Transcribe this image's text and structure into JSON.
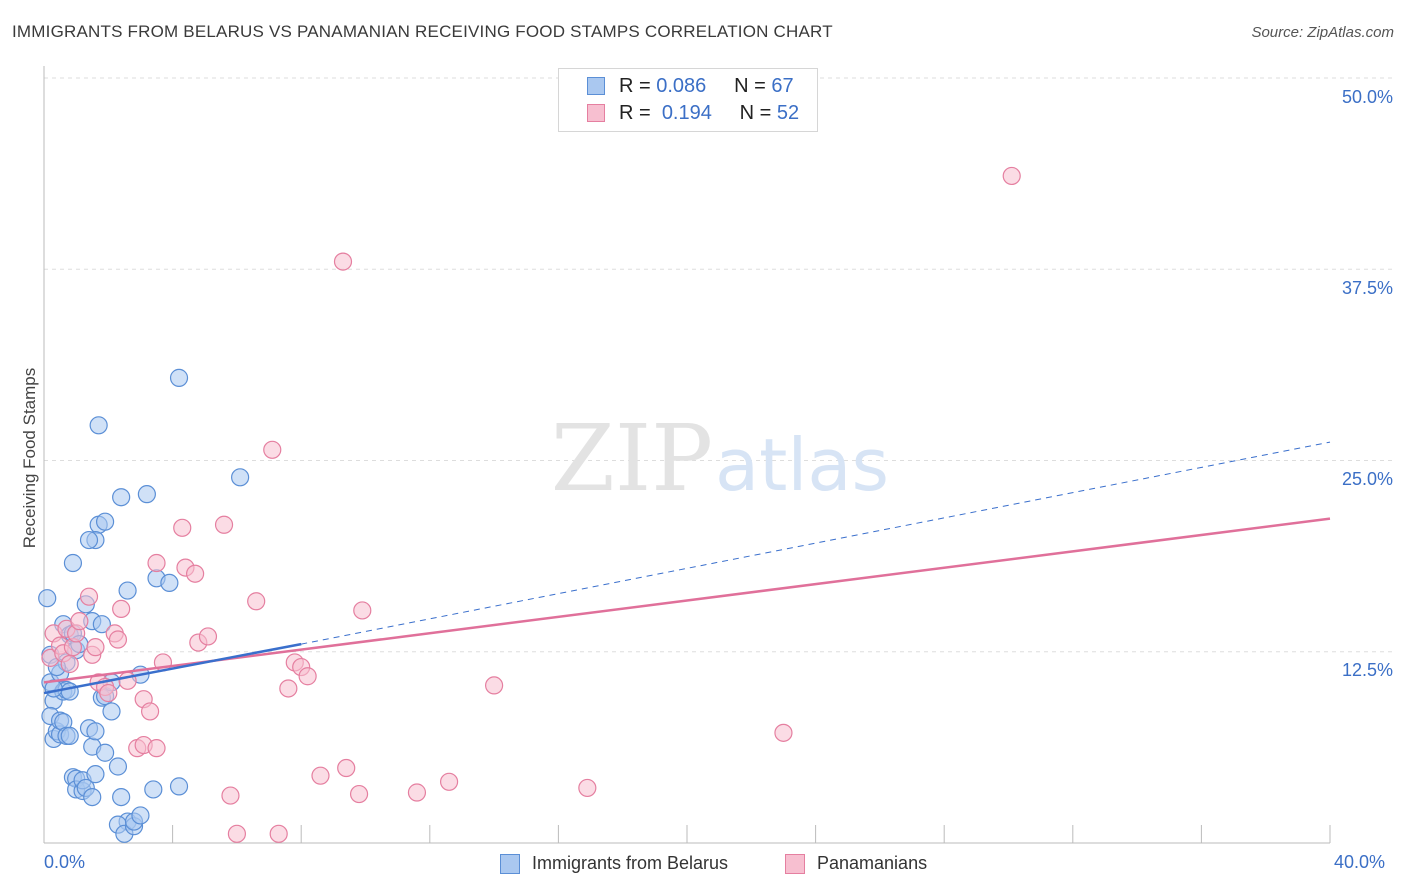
{
  "title": "IMMIGRANTS FROM BELARUS VS PANAMANIAN RECEIVING FOOD STAMPS CORRELATION CHART",
  "source": "Source: ZipAtlas.com",
  "watermark": {
    "zip": "ZIP",
    "atlas": "atlas"
  },
  "legend_top": {
    "rows": [
      {
        "r_label": "R =",
        "r_value": "0.086",
        "n_label": "N =",
        "n_value": "67"
      },
      {
        "r_label": "R =",
        "r_value": "0.194",
        "n_label": "N =",
        "n_value": "52"
      }
    ]
  },
  "legend_bottom": {
    "series1": "Immigrants from Belarus",
    "series2": "Panamanians"
  },
  "colors": {
    "blue_fill": "#aac8f0",
    "blue_stroke": "#5b8fd6",
    "blue_line": "#3a6fcc",
    "pink_fill": "#f7bfd0",
    "pink_stroke": "#e57fa0",
    "pink_line": "#e0709a",
    "grid": "#dddddd",
    "tick_label": "#3b6fc6"
  },
  "chart_data": {
    "type": "scatter",
    "title": "IMMIGRANTS FROM BELARUS VS PANAMANIAN RECEIVING FOOD STAMPS CORRELATION CHART",
    "xlabel": "",
    "ylabel": "Receiving Food Stamps",
    "xlim": [
      0,
      40
    ],
    "ylim": [
      0,
      50
    ],
    "x_tick_labels": [
      "0.0%",
      "40.0%"
    ],
    "y_ticks": [
      12.5,
      25.0,
      37.5,
      50.0
    ],
    "y_tick_labels": [
      "12.5%",
      "25.0%",
      "37.5%",
      "50.0%"
    ],
    "series": [
      {
        "name": "Immigrants from Belarus",
        "color": "blue",
        "R": 0.086,
        "N": 67,
        "trend": {
          "x0": 0,
          "y0": 9.8,
          "x1": 8,
          "y1": 13.0,
          "dashed_to_x": 40,
          "dashed_to_y": 26.2
        },
        "points": [
          [
            0.2,
            12.3
          ],
          [
            0.2,
            10.5
          ],
          [
            0.3,
            9.3
          ],
          [
            0.2,
            8.3
          ],
          [
            0.3,
            6.8
          ],
          [
            0.4,
            7.3
          ],
          [
            0.5,
            7.1
          ],
          [
            0.5,
            8.0
          ],
          [
            0.6,
            7.9
          ],
          [
            0.6,
            9.9
          ],
          [
            0.5,
            11.1
          ],
          [
            0.7,
            10.0
          ],
          [
            0.8,
            9.9
          ],
          [
            0.7,
            11.8
          ],
          [
            0.6,
            14.3
          ],
          [
            0.8,
            13.6
          ],
          [
            0.9,
            13.7
          ],
          [
            1.0,
            12.6
          ],
          [
            1.1,
            13.0
          ],
          [
            0.7,
            7.0
          ],
          [
            0.8,
            7.0
          ],
          [
            0.9,
            4.3
          ],
          [
            1.0,
            4.2
          ],
          [
            1.0,
            3.5
          ],
          [
            1.2,
            3.4
          ],
          [
            1.2,
            4.1
          ],
          [
            1.3,
            3.6
          ],
          [
            1.5,
            3.0
          ],
          [
            1.6,
            4.5
          ],
          [
            1.5,
            6.3
          ],
          [
            1.4,
            7.5
          ],
          [
            1.6,
            7.3
          ],
          [
            1.8,
            9.5
          ],
          [
            1.9,
            9.6
          ],
          [
            2.1,
            8.6
          ],
          [
            1.9,
            5.9
          ],
          [
            2.1,
            10.5
          ],
          [
            2.3,
            5.0
          ],
          [
            2.4,
            3.0
          ],
          [
            2.6,
            1.4
          ],
          [
            2.3,
            1.2
          ],
          [
            2.5,
            0.6
          ],
          [
            2.8,
            1.1
          ],
          [
            2.8,
            1.4
          ],
          [
            3.0,
            1.8
          ],
          [
            3.4,
            3.5
          ],
          [
            4.2,
            3.7
          ],
          [
            3.0,
            11.0
          ],
          [
            2.6,
            16.5
          ],
          [
            2.4,
            22.6
          ],
          [
            1.7,
            20.8
          ],
          [
            1.9,
            21.0
          ],
          [
            1.6,
            19.8
          ],
          [
            1.4,
            19.8
          ],
          [
            0.9,
            18.3
          ],
          [
            1.3,
            15.6
          ],
          [
            0.1,
            16.0
          ],
          [
            3.5,
            17.3
          ],
          [
            3.9,
            17.0
          ],
          [
            1.7,
            27.3
          ],
          [
            4.2,
            30.4
          ],
          [
            6.1,
            23.9
          ],
          [
            3.2,
            22.8
          ],
          [
            0.4,
            11.5
          ],
          [
            0.3,
            10.1
          ],
          [
            1.5,
            14.5
          ],
          [
            1.8,
            14.3
          ]
        ]
      },
      {
        "name": "Panamanians",
        "color": "pink",
        "R": 0.194,
        "N": 52,
        "trend": {
          "x0": 0,
          "y0": 10.5,
          "x1": 40,
          "y1": 21.2
        },
        "points": [
          [
            0.2,
            12.1
          ],
          [
            0.3,
            13.7
          ],
          [
            0.5,
            12.9
          ],
          [
            0.6,
            12.4
          ],
          [
            0.7,
            14.0
          ],
          [
            0.9,
            12.8
          ],
          [
            0.8,
            11.7
          ],
          [
            1.0,
            13.7
          ],
          [
            1.1,
            14.5
          ],
          [
            1.4,
            16.1
          ],
          [
            1.5,
            12.3
          ],
          [
            1.6,
            12.8
          ],
          [
            1.7,
            10.5
          ],
          [
            1.9,
            10.2
          ],
          [
            2.0,
            9.8
          ],
          [
            2.2,
            13.7
          ],
          [
            2.3,
            13.3
          ],
          [
            2.4,
            15.3
          ],
          [
            2.6,
            10.6
          ],
          [
            2.9,
            6.2
          ],
          [
            3.1,
            6.4
          ],
          [
            3.1,
            9.4
          ],
          [
            3.3,
            8.6
          ],
          [
            3.5,
            6.2
          ],
          [
            3.5,
            18.3
          ],
          [
            3.7,
            11.8
          ],
          [
            4.3,
            20.6
          ],
          [
            4.4,
            18.0
          ],
          [
            4.7,
            17.6
          ],
          [
            4.8,
            13.1
          ],
          [
            5.1,
            13.5
          ],
          [
            5.6,
            20.8
          ],
          [
            5.8,
            3.1
          ],
          [
            6.0,
            0.6
          ],
          [
            6.6,
            15.8
          ],
          [
            7.1,
            25.7
          ],
          [
            7.3,
            0.6
          ],
          [
            7.6,
            10.1
          ],
          [
            7.8,
            11.8
          ],
          [
            8.0,
            11.5
          ],
          [
            8.2,
            10.9
          ],
          [
            8.6,
            4.4
          ],
          [
            9.3,
            38.0
          ],
          [
            9.4,
            4.9
          ],
          [
            9.8,
            3.2
          ],
          [
            9.9,
            15.2
          ],
          [
            11.6,
            3.3
          ],
          [
            12.6,
            4.0
          ],
          [
            14.0,
            10.3
          ],
          [
            16.9,
            3.6
          ],
          [
            23.0,
            7.2
          ],
          [
            30.1,
            43.6
          ]
        ]
      }
    ]
  }
}
